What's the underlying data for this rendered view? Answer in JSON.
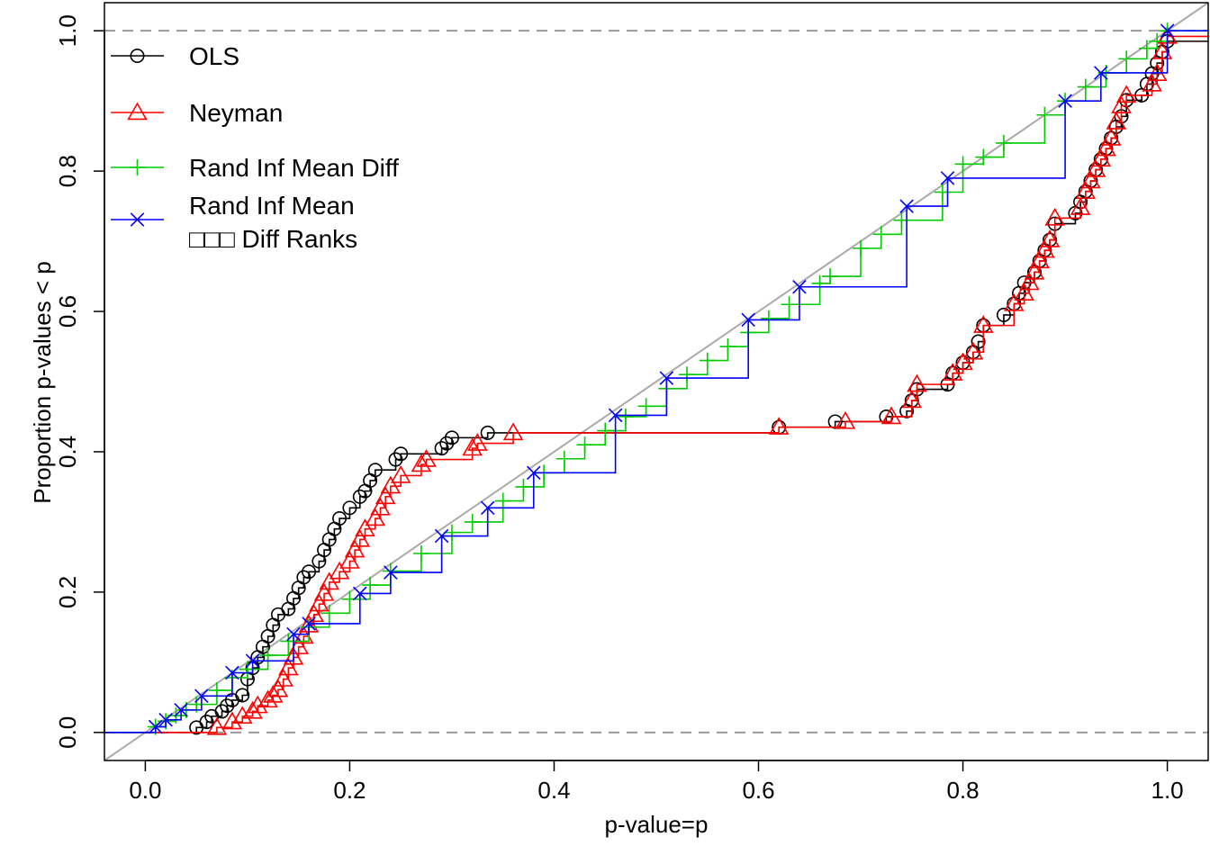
{
  "chart_data": {
    "type": "line",
    "xlabel": "p-value=p",
    "ylabel": "Proportion p-values < p",
    "xlim": [
      -0.04,
      1.04
    ],
    "ylim": [
      -0.04,
      1.04
    ],
    "xticks": [
      0.0,
      0.2,
      0.4,
      0.6,
      0.8,
      1.0
    ],
    "xtick_labels": [
      "0.0",
      "0.2",
      "0.4",
      "0.6",
      "0.8",
      "1.0"
    ],
    "yticks": [
      0.0,
      0.2,
      0.4,
      0.6,
      0.8,
      1.0
    ],
    "ytick_labels": [
      "0.0",
      "0.2",
      "0.4",
      "0.6",
      "0.8",
      "1.0"
    ],
    "reference_lines": {
      "diagonal_color": "#aaaaaa",
      "dashed_color": "#999999",
      "dashed_y": [
        0.0,
        1.0
      ]
    },
    "legend": {
      "position": "top-left",
      "entries": [
        {
          "label": "OLS",
          "color": "#000000",
          "marker": "circle"
        },
        {
          "label": "Neyman",
          "color": "#ff0000",
          "marker": "triangle"
        },
        {
          "label": "Rand Inf Mean Diff",
          "color": "#00cc00",
          "marker": "plus"
        },
        {
          "label": "Rand Inf Mean",
          "label2": "□□□  Diff Ranks",
          "color": "#0000ff",
          "marker": "x"
        }
      ]
    },
    "series": [
      {
        "name": "OLS",
        "color": "#000000",
        "marker": "circle",
        "points": [
          [
            0.05,
            0.007
          ],
          [
            0.06,
            0.015
          ],
          [
            0.065,
            0.023
          ],
          [
            0.075,
            0.03
          ],
          [
            0.08,
            0.038
          ],
          [
            0.085,
            0.046
          ],
          [
            0.095,
            0.053
          ],
          [
            0.1,
            0.076
          ],
          [
            0.105,
            0.092
          ],
          [
            0.11,
            0.107
          ],
          [
            0.115,
            0.122
          ],
          [
            0.12,
            0.137
          ],
          [
            0.125,
            0.153
          ],
          [
            0.13,
            0.168
          ],
          [
            0.14,
            0.176
          ],
          [
            0.145,
            0.191
          ],
          [
            0.15,
            0.206
          ],
          [
            0.155,
            0.221
          ],
          [
            0.16,
            0.229
          ],
          [
            0.17,
            0.244
          ],
          [
            0.175,
            0.26
          ],
          [
            0.18,
            0.275
          ],
          [
            0.185,
            0.29
          ],
          [
            0.19,
            0.305
          ],
          [
            0.2,
            0.32
          ],
          [
            0.21,
            0.336
          ],
          [
            0.215,
            0.344
          ],
          [
            0.22,
            0.359
          ],
          [
            0.225,
            0.374
          ],
          [
            0.245,
            0.389
          ],
          [
            0.25,
            0.397
          ],
          [
            0.29,
            0.405
          ],
          [
            0.295,
            0.412
          ],
          [
            0.3,
            0.42
          ],
          [
            0.335,
            0.427
          ],
          [
            0.62,
            0.435
          ],
          [
            0.675,
            0.443
          ],
          [
            0.725,
            0.45
          ],
          [
            0.745,
            0.458
          ],
          [
            0.75,
            0.473
          ],
          [
            0.755,
            0.489
          ],
          [
            0.785,
            0.496
          ],
          [
            0.79,
            0.512
          ],
          [
            0.8,
            0.527
          ],
          [
            0.81,
            0.542
          ],
          [
            0.815,
            0.557
          ],
          [
            0.82,
            0.58
          ],
          [
            0.84,
            0.595
          ],
          [
            0.85,
            0.611
          ],
          [
            0.855,
            0.626
          ],
          [
            0.86,
            0.641
          ],
          [
            0.87,
            0.656
          ],
          [
            0.875,
            0.672
          ],
          [
            0.88,
            0.687
          ],
          [
            0.885,
            0.702
          ],
          [
            0.89,
            0.725
          ],
          [
            0.91,
            0.74
          ],
          [
            0.915,
            0.756
          ],
          [
            0.92,
            0.771
          ],
          [
            0.925,
            0.786
          ],
          [
            0.93,
            0.802
          ],
          [
            0.935,
            0.817
          ],
          [
            0.94,
            0.832
          ],
          [
            0.945,
            0.847
          ],
          [
            0.95,
            0.863
          ],
          [
            0.955,
            0.878
          ],
          [
            0.96,
            0.901
          ],
          [
            0.975,
            0.908
          ],
          [
            0.98,
            0.924
          ],
          [
            0.985,
            0.939
          ],
          [
            0.99,
            0.954
          ],
          [
            0.995,
            0.97
          ],
          [
            1.0,
            0.985
          ]
        ]
      },
      {
        "name": "Neyman",
        "color": "#ff0000",
        "marker": "triangle",
        "points": [
          [
            0.07,
            0.007
          ],
          [
            0.085,
            0.015
          ],
          [
            0.095,
            0.023
          ],
          [
            0.105,
            0.03
          ],
          [
            0.11,
            0.038
          ],
          [
            0.12,
            0.046
          ],
          [
            0.125,
            0.053
          ],
          [
            0.13,
            0.061
          ],
          [
            0.135,
            0.076
          ],
          [
            0.14,
            0.092
          ],
          [
            0.145,
            0.107
          ],
          [
            0.15,
            0.122
          ],
          [
            0.155,
            0.137
          ],
          [
            0.16,
            0.153
          ],
          [
            0.165,
            0.168
          ],
          [
            0.17,
            0.183
          ],
          [
            0.175,
            0.198
          ],
          [
            0.18,
            0.214
          ],
          [
            0.19,
            0.229
          ],
          [
            0.2,
            0.244
          ],
          [
            0.205,
            0.26
          ],
          [
            0.21,
            0.275
          ],
          [
            0.215,
            0.29
          ],
          [
            0.225,
            0.305
          ],
          [
            0.23,
            0.32
          ],
          [
            0.235,
            0.336
          ],
          [
            0.24,
            0.351
          ],
          [
            0.25,
            0.366
          ],
          [
            0.27,
            0.382
          ],
          [
            0.275,
            0.389
          ],
          [
            0.32,
            0.405
          ],
          [
            0.325,
            0.412
          ],
          [
            0.36,
            0.427
          ],
          [
            0.62,
            0.435
          ],
          [
            0.685,
            0.443
          ],
          [
            0.73,
            0.45
          ],
          [
            0.75,
            0.473
          ],
          [
            0.755,
            0.496
          ],
          [
            0.79,
            0.512
          ],
          [
            0.8,
            0.527
          ],
          [
            0.81,
            0.542
          ],
          [
            0.82,
            0.58
          ],
          [
            0.85,
            0.611
          ],
          [
            0.86,
            0.626
          ],
          [
            0.865,
            0.641
          ],
          [
            0.87,
            0.656
          ],
          [
            0.875,
            0.672
          ],
          [
            0.88,
            0.687
          ],
          [
            0.885,
            0.702
          ],
          [
            0.89,
            0.733
          ],
          [
            0.915,
            0.748
          ],
          [
            0.92,
            0.771
          ],
          [
            0.925,
            0.786
          ],
          [
            0.93,
            0.802
          ],
          [
            0.935,
            0.817
          ],
          [
            0.94,
            0.832
          ],
          [
            0.945,
            0.847
          ],
          [
            0.95,
            0.87
          ],
          [
            0.955,
            0.893
          ],
          [
            0.96,
            0.908
          ],
          [
            0.985,
            0.924
          ],
          [
            0.99,
            0.939
          ],
          [
            0.995,
            0.97
          ],
          [
            1.0,
            0.992
          ]
        ]
      },
      {
        "name": "Rand Inf Mean Diff",
        "color": "#00cc00",
        "marker": "plus",
        "points": [
          [
            0.01,
            0.008
          ],
          [
            0.02,
            0.016
          ],
          [
            0.03,
            0.024
          ],
          [
            0.04,
            0.032
          ],
          [
            0.05,
            0.04
          ],
          [
            0.07,
            0.06
          ],
          [
            0.085,
            0.078
          ],
          [
            0.1,
            0.09
          ],
          [
            0.12,
            0.11
          ],
          [
            0.14,
            0.13
          ],
          [
            0.16,
            0.15
          ],
          [
            0.18,
            0.17
          ],
          [
            0.2,
            0.19
          ],
          [
            0.22,
            0.21
          ],
          [
            0.24,
            0.23
          ],
          [
            0.27,
            0.255
          ],
          [
            0.3,
            0.285
          ],
          [
            0.32,
            0.3
          ],
          [
            0.35,
            0.33
          ],
          [
            0.37,
            0.35
          ],
          [
            0.39,
            0.37
          ],
          [
            0.41,
            0.39
          ],
          [
            0.43,
            0.41
          ],
          [
            0.45,
            0.43
          ],
          [
            0.47,
            0.45
          ],
          [
            0.49,
            0.465
          ],
          [
            0.51,
            0.49
          ],
          [
            0.53,
            0.51
          ],
          [
            0.55,
            0.53
          ],
          [
            0.57,
            0.55
          ],
          [
            0.59,
            0.57
          ],
          [
            0.61,
            0.59
          ],
          [
            0.63,
            0.61
          ],
          [
            0.66,
            0.64
          ],
          [
            0.67,
            0.65
          ],
          [
            0.7,
            0.69
          ],
          [
            0.72,
            0.71
          ],
          [
            0.74,
            0.73
          ],
          [
            0.78,
            0.77
          ],
          [
            0.8,
            0.81
          ],
          [
            0.82,
            0.82
          ],
          [
            0.84,
            0.84
          ],
          [
            0.88,
            0.88
          ],
          [
            0.9,
            0.9
          ],
          [
            0.92,
            0.92
          ],
          [
            0.94,
            0.94
          ],
          [
            0.96,
            0.96
          ],
          [
            0.98,
            0.975
          ],
          [
            0.99,
            0.985
          ],
          [
            1.0,
            1.0
          ]
        ]
      },
      {
        "name": "Rand Inf Mean Diff Ranks",
        "color": "#0000ff",
        "marker": "x",
        "points": [
          [
            0.01,
            0.008
          ],
          [
            0.02,
            0.018
          ],
          [
            0.035,
            0.032
          ],
          [
            0.055,
            0.052
          ],
          [
            0.085,
            0.085
          ],
          [
            0.105,
            0.102
          ],
          [
            0.145,
            0.14
          ],
          [
            0.16,
            0.155
          ],
          [
            0.21,
            0.198
          ],
          [
            0.24,
            0.228
          ],
          [
            0.29,
            0.28
          ],
          [
            0.335,
            0.32
          ],
          [
            0.38,
            0.37
          ],
          [
            0.46,
            0.452
          ],
          [
            0.51,
            0.505
          ],
          [
            0.59,
            0.588
          ],
          [
            0.64,
            0.635
          ],
          [
            0.745,
            0.75
          ],
          [
            0.785,
            0.79
          ],
          [
            0.9,
            0.9
          ],
          [
            0.935,
            0.94
          ],
          [
            1.0,
            1.0
          ]
        ]
      }
    ]
  }
}
